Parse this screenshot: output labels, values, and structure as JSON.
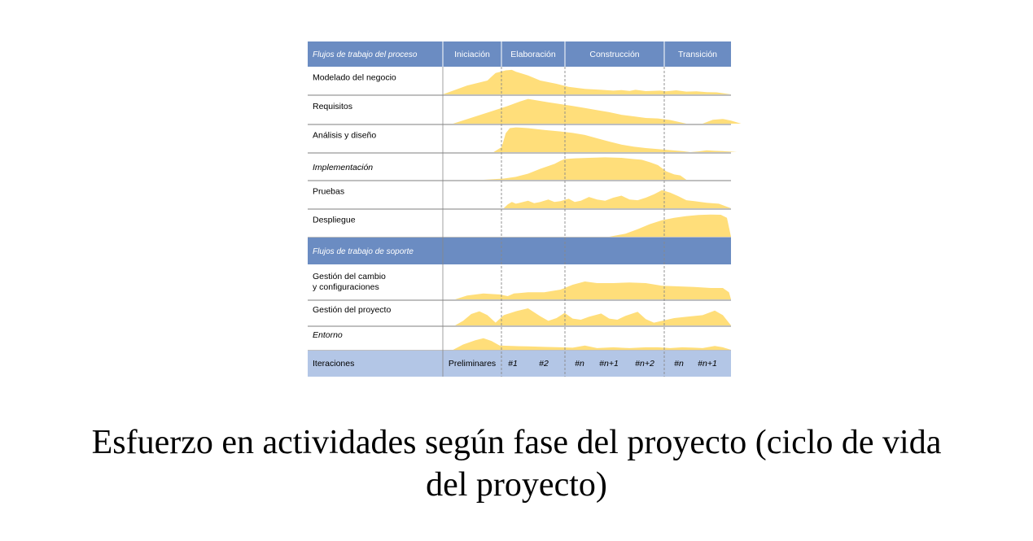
{
  "colors": {
    "header_bar": "#6b8cc2",
    "support_bar": "#6b8cc2",
    "iterations_bar": "#b3c6e6",
    "effort_fill": "#ffde7a",
    "row_line": "#555555",
    "phase_divider": "#888888",
    "header_text": "#ffffff",
    "body_text": "#000000"
  },
  "header": {
    "workflow_column": "Flujos de trabajo del proceso",
    "phases": [
      "Iniciación",
      "Elaboración",
      "Construcción",
      "Transición"
    ]
  },
  "process_workflows": [
    {
      "line1": "Modelado del negocio",
      "line2": "",
      "effort": [
        [
          0,
          0
        ],
        [
          0.12,
          0.35
        ],
        [
          0.22,
          0.55
        ],
        [
          0.24,
          0.7
        ],
        [
          0.26,
          0.85
        ],
        [
          0.31,
          0.95
        ],
        [
          0.34,
          0.97
        ],
        [
          0.36,
          0.9
        ],
        [
          0.42,
          0.75
        ],
        [
          0.48,
          0.55
        ],
        [
          0.56,
          0.42
        ],
        [
          0.62,
          0.3
        ],
        [
          0.7,
          0.22
        ],
        [
          0.78,
          0.18
        ],
        [
          0.84,
          0.15
        ],
        [
          0.88,
          0.17
        ],
        [
          0.92,
          0.14
        ],
        [
          0.95,
          0.18
        ],
        [
          1,
          0.13
        ],
        [
          1.07,
          0.15
        ],
        [
          1.1,
          0.12
        ],
        [
          1.15,
          0.16
        ],
        [
          1.2,
          0.11
        ],
        [
          1.25,
          0.12
        ],
        [
          1.3,
          0.09
        ],
        [
          1.35,
          0.08
        ],
        [
          1.42,
          0
        ]
      ]
    },
    {
      "line1": "Requisitos",
      "line2": "",
      "effort": [
        [
          0.05,
          0
        ],
        [
          0.25,
          0.5
        ],
        [
          0.32,
          0.68
        ],
        [
          0.38,
          0.85
        ],
        [
          0.42,
          0.95
        ],
        [
          0.46,
          0.9
        ],
        [
          0.52,
          0.82
        ],
        [
          0.58,
          0.75
        ],
        [
          0.64,
          0.68
        ],
        [
          0.7,
          0.6
        ],
        [
          0.76,
          0.52
        ],
        [
          0.82,
          0.44
        ],
        [
          0.88,
          0.34
        ],
        [
          0.94,
          0.28
        ],
        [
          1,
          0.22
        ],
        [
          1.06,
          0.2
        ],
        [
          1.12,
          0.14
        ],
        [
          1.2,
          0
        ],
        [
          1.28,
          0
        ],
        [
          1.33,
          0.15
        ],
        [
          1.38,
          0.18
        ],
        [
          1.42,
          0.12
        ],
        [
          1.47,
          0
        ]
      ]
    },
    {
      "line1": "Análisis y diseño",
      "line2": "",
      "effort": [
        [
          0.25,
          0
        ],
        [
          0.29,
          0.2
        ],
        [
          0.31,
          0.75
        ],
        [
          0.33,
          0.95
        ],
        [
          0.36,
          0.98
        ],
        [
          0.42,
          0.95
        ],
        [
          0.5,
          0.88
        ],
        [
          0.58,
          0.82
        ],
        [
          0.64,
          0.76
        ],
        [
          0.7,
          0.68
        ],
        [
          0.76,
          0.55
        ],
        [
          0.82,
          0.42
        ],
        [
          0.88,
          0.3
        ],
        [
          0.94,
          0.22
        ],
        [
          1,
          0.16
        ],
        [
          1.06,
          0.12
        ],
        [
          1.12,
          0.08
        ],
        [
          1.18,
          0.04
        ],
        [
          1.22,
          0
        ],
        [
          1.26,
          0.03
        ],
        [
          1.3,
          0.07
        ],
        [
          1.34,
          0.05
        ],
        [
          1.38,
          0.04
        ],
        [
          1.42,
          0.02
        ],
        [
          1.45,
          0
        ]
      ]
    },
    {
      "line1": "Implementación",
      "line2": "",
      "effort": [
        [
          0.2,
          0
        ],
        [
          0.3,
          0.05
        ],
        [
          0.36,
          0.12
        ],
        [
          0.42,
          0.25
        ],
        [
          0.48,
          0.45
        ],
        [
          0.55,
          0.65
        ],
        [
          0.58,
          0.78
        ],
        [
          0.6,
          0.85
        ],
        [
          0.65,
          0.88
        ],
        [
          0.72,
          0.9
        ],
        [
          0.8,
          0.92
        ],
        [
          0.88,
          0.9
        ],
        [
          0.94,
          0.85
        ],
        [
          0.98,
          0.82
        ],
        [
          1.02,
          0.72
        ],
        [
          1.06,
          0.6
        ],
        [
          1.1,
          0.35
        ],
        [
          1.14,
          0.22
        ],
        [
          1.17,
          0.18
        ],
        [
          1.2,
          0.0
        ]
      ]
    },
    {
      "line1": "Pruebas",
      "line2": "",
      "effort": [
        [
          0.3,
          0
        ],
        [
          0.32,
          0.15
        ],
        [
          0.34,
          0.25
        ],
        [
          0.36,
          0.18
        ],
        [
          0.38,
          0.22
        ],
        [
          0.42,
          0.3
        ],
        [
          0.45,
          0.2
        ],
        [
          0.48,
          0.25
        ],
        [
          0.52,
          0.35
        ],
        [
          0.55,
          0.25
        ],
        [
          0.58,
          0.28
        ],
        [
          0.62,
          0.38
        ],
        [
          0.65,
          0.25
        ],
        [
          0.68,
          0.3
        ],
        [
          0.72,
          0.45
        ],
        [
          0.76,
          0.35
        ],
        [
          0.8,
          0.3
        ],
        [
          0.84,
          0.42
        ],
        [
          0.88,
          0.5
        ],
        [
          0.92,
          0.35
        ],
        [
          0.96,
          0.32
        ],
        [
          1,
          0.42
        ],
        [
          1.04,
          0.55
        ],
        [
          1.08,
          0.72
        ],
        [
          1.12,
          0.62
        ],
        [
          1.16,
          0.48
        ],
        [
          1.2,
          0.32
        ],
        [
          1.24,
          0.28
        ],
        [
          1.3,
          0.22
        ],
        [
          1.36,
          0.18
        ],
        [
          1.42,
          0
        ]
      ]
    },
    {
      "line1": "Despliegue",
      "line2": "",
      "effort": [
        [
          0.82,
          0
        ],
        [
          0.9,
          0.12
        ],
        [
          0.96,
          0.3
        ],
        [
          1.02,
          0.5
        ],
        [
          1.08,
          0.65
        ],
        [
          1.14,
          0.75
        ],
        [
          1.2,
          0.82
        ],
        [
          1.26,
          0.86
        ],
        [
          1.32,
          0.88
        ],
        [
          1.37,
          0.87
        ],
        [
          1.4,
          0.75
        ],
        [
          1.42,
          0
        ]
      ]
    }
  ],
  "support_header": "Flujos de trabajo de soporte",
  "support_workflows": [
    {
      "line1": "Gestión del cambio",
      "line2": "y configuraciones",
      "effort": [
        [
          0.06,
          0
        ],
        [
          0.12,
          0.12
        ],
        [
          0.2,
          0.18
        ],
        [
          0.28,
          0.15
        ],
        [
          0.32,
          0.1
        ],
        [
          0.35,
          0.18
        ],
        [
          0.42,
          0.22
        ],
        [
          0.5,
          0.22
        ],
        [
          0.58,
          0.3
        ],
        [
          0.64,
          0.45
        ],
        [
          0.7,
          0.55
        ],
        [
          0.76,
          0.5
        ],
        [
          0.84,
          0.5
        ],
        [
          0.92,
          0.52
        ],
        [
          1,
          0.5
        ],
        [
          1.08,
          0.42
        ],
        [
          1.16,
          0.4
        ],
        [
          1.24,
          0.38
        ],
        [
          1.32,
          0.35
        ],
        [
          1.38,
          0.35
        ],
        [
          1.41,
          0.22
        ],
        [
          1.42,
          0
        ]
      ]
    },
    {
      "line1": "Gestión del proyecto",
      "line2": "",
      "effort": [
        [
          0.06,
          0
        ],
        [
          0.1,
          0.2
        ],
        [
          0.14,
          0.5
        ],
        [
          0.18,
          0.62
        ],
        [
          0.22,
          0.45
        ],
        [
          0.26,
          0.12
        ],
        [
          0.3,
          0.45
        ],
        [
          0.36,
          0.62
        ],
        [
          0.42,
          0.75
        ],
        [
          0.48,
          0.4
        ],
        [
          0.52,
          0.2
        ],
        [
          0.56,
          0.32
        ],
        [
          0.6,
          0.55
        ],
        [
          0.64,
          0.3
        ],
        [
          0.68,
          0.25
        ],
        [
          0.72,
          0.38
        ],
        [
          0.78,
          0.52
        ],
        [
          0.82,
          0.3
        ],
        [
          0.86,
          0.25
        ],
        [
          0.9,
          0.42
        ],
        [
          0.96,
          0.6
        ],
        [
          1,
          0.28
        ],
        [
          1.04,
          0.12
        ],
        [
          1.08,
          0.2
        ],
        [
          1.14,
          0.32
        ],
        [
          1.2,
          0.38
        ],
        [
          1.28,
          0.45
        ],
        [
          1.34,
          0.65
        ],
        [
          1.38,
          0.45
        ],
        [
          1.42,
          0
        ]
      ]
    },
    {
      "line1": "Entorno",
      "line2": "",
      "effort": [
        [
          0.05,
          0
        ],
        [
          0.1,
          0.25
        ],
        [
          0.16,
          0.45
        ],
        [
          0.2,
          0.55
        ],
        [
          0.24,
          0.42
        ],
        [
          0.28,
          0.2
        ],
        [
          0.34,
          0.18
        ],
        [
          0.42,
          0.16
        ],
        [
          0.5,
          0.14
        ],
        [
          0.58,
          0.12
        ],
        [
          0.64,
          0.1
        ],
        [
          0.7,
          0.2
        ],
        [
          0.76,
          0.08
        ],
        [
          0.84,
          0.12
        ],
        [
          0.92,
          0.08
        ],
        [
          1,
          0.12
        ],
        [
          1.06,
          0.12
        ],
        [
          1.12,
          0.08
        ],
        [
          1.18,
          0.12
        ],
        [
          1.24,
          0.1
        ],
        [
          1.28,
          0.08
        ],
        [
          1.34,
          0.18
        ],
        [
          1.38,
          0.12
        ],
        [
          1.42,
          0
        ]
      ]
    }
  ],
  "iterations": {
    "label": "Iteraciones",
    "items": [
      "Preliminares",
      "#1",
      "#2",
      "#n",
      "#n+1",
      "#n+2",
      "#n",
      "#n+1"
    ]
  },
  "caption": {
    "line1": "Esfuerzo en actividades según fase del proyecto (ciclo de vida",
    "line2": "del proyecto)"
  }
}
